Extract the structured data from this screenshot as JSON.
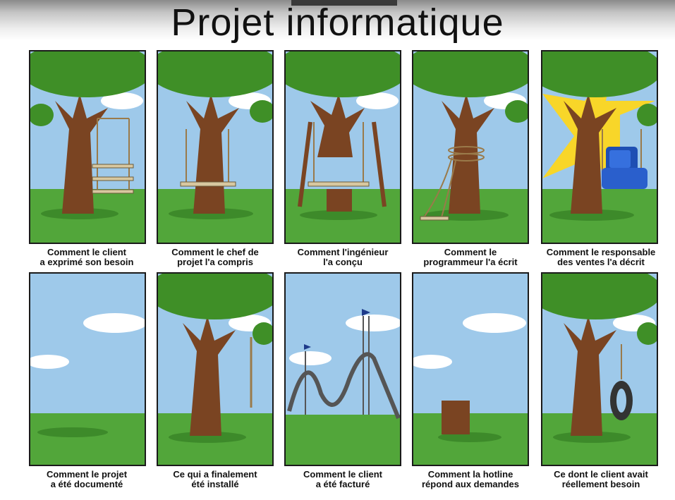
{
  "title": "Projet informatique",
  "colors": {
    "sky": "#9ec9ea",
    "grass": "#52a63a",
    "trunk": "#7a4422",
    "foliage": "#3f8f27",
    "cloud": "#ffffff",
    "armchair": "#1e4fb3",
    "sun": "#f8d629"
  },
  "panels": [
    {
      "caption": "Comment le client\na exprimé son besoin",
      "scene": "tree-triple-swing"
    },
    {
      "caption": "Comment le chef de\nprojet l'a compris",
      "scene": "tree-swing-to-ground"
    },
    {
      "caption": "Comment l'ingénieur\nl'a conçu",
      "scene": "tree-cut-trunk-swing"
    },
    {
      "caption": "Comment le\nprogrammeur l'a écrit",
      "scene": "tree-rope-wrapped"
    },
    {
      "caption": "Comment le responsable\ndes ventes l'a décrit",
      "scene": "tree-armchair-sun"
    },
    {
      "caption": "Comment le projet\na été documenté",
      "scene": "empty-field"
    },
    {
      "caption": "Ce qui a finalement\nété installé",
      "scene": "tree-single-rope"
    },
    {
      "caption": "Comment le client\na été facturé",
      "scene": "roller-coaster"
    },
    {
      "caption": "Comment la hotline\nrépond aux demandes",
      "scene": "tree-stump"
    },
    {
      "caption": "Ce dont le client avait\nréellement besoin",
      "scene": "tree-tire-swing"
    }
  ]
}
